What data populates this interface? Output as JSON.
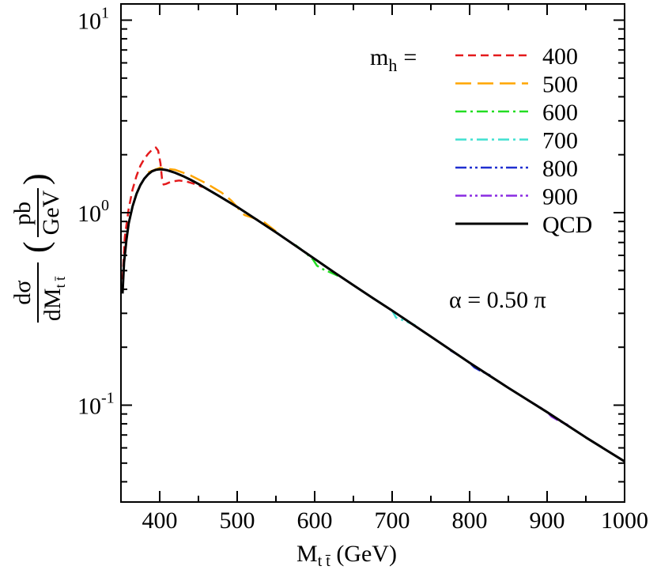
{
  "chart_data": {
    "type": "line",
    "xlim": [
      350,
      1000
    ],
    "ylim": [
      0.035,
      10
    ],
    "yscale": "log",
    "grid": false,
    "legend_placement": "top-right",
    "x_ticks": [
      400,
      500,
      600,
      700,
      800,
      900,
      1000
    ],
    "x_tick_labels": [
      "400",
      "500",
      "600",
      "700",
      "800",
      "900",
      "1000"
    ],
    "y_ticks": [
      {
        "value": 10,
        "base": "10",
        "exp": "1"
      },
      {
        "value": 1,
        "base": "10",
        "exp": "0"
      },
      {
        "value": 0.1,
        "base": "10",
        "exp": "-1"
      }
    ],
    "xlabel": {
      "main": "M",
      "sub": "t t̄",
      "rest": " (GeV)"
    },
    "ylabel": {
      "frac_num": "dσ",
      "frac_den_main": "dM",
      "frac_den_sub": "t t̄",
      "paren_open": "(",
      "paren_close": ")",
      "unit_num": "pb",
      "unit_den": "GeV"
    },
    "legend": {
      "title_main": "m",
      "title_sub": "h",
      "title_eq": "=",
      "entries": [
        {
          "label": "400",
          "color": "#e41a1c",
          "dash": "dash"
        },
        {
          "label": "500",
          "color": "#ffa500",
          "dash": "longdash"
        },
        {
          "label": "600",
          "color": "#22dd22",
          "dash": "dashdot"
        },
        {
          "label": "700",
          "color": "#40e0d0",
          "dash": "dashdot"
        },
        {
          "label": "800",
          "color": "#1f2fd0",
          "dash": "dashdotdot"
        },
        {
          "label": "900",
          "color": "#8a2be2",
          "dash": "dashdotdot"
        },
        {
          "label": "QCD",
          "color": "#000000",
          "dash": "solid"
        }
      ]
    },
    "annotation": "α = 0.50 π",
    "series": [
      {
        "name": "QCD",
        "color": "#000000",
        "dash": "solid",
        "x": [
          352,
          354,
          357,
          360,
          365,
          370,
          375,
          380,
          385,
          390,
          395,
          400,
          405,
          410,
          420,
          430,
          440,
          450,
          475,
          500,
          525,
          550,
          575,
          600,
          625,
          650,
          675,
          700,
          750,
          800,
          850,
          900,
          950,
          1000
        ],
        "y": [
          0.38,
          0.55,
          0.72,
          0.88,
          1.08,
          1.25,
          1.39,
          1.5,
          1.58,
          1.64,
          1.67,
          1.68,
          1.675,
          1.66,
          1.61,
          1.55,
          1.48,
          1.41,
          1.23,
          1.07,
          0.92,
          0.79,
          0.675,
          0.575,
          0.49,
          0.42,
          0.36,
          0.31,
          0.227,
          0.166,
          0.123,
          0.092,
          0.068,
          0.051
        ]
      },
      {
        "name": "400",
        "color": "#e41a1c",
        "dash": "dash",
        "x": [
          352,
          355,
          360,
          365,
          370,
          375,
          380,
          385,
          390,
          395,
          398,
          401,
          403,
          405,
          408,
          415,
          425,
          435,
          445,
          455
        ],
        "y": [
          0.45,
          0.75,
          1.05,
          1.32,
          1.55,
          1.75,
          1.9,
          2.02,
          2.12,
          2.18,
          2.1,
          1.8,
          1.5,
          1.4,
          1.41,
          1.45,
          1.47,
          1.45,
          1.41,
          1.36
        ]
      },
      {
        "name": "500",
        "color": "#ffa500",
        "dash": "longdash",
        "x": [
          385,
          400,
          420,
          440,
          460,
          480,
          492,
          500,
          505,
          510,
          520,
          535,
          550
        ],
        "y": [
          1.62,
          1.71,
          1.67,
          1.56,
          1.42,
          1.27,
          1.16,
          1.07,
          1.0,
          0.97,
          0.94,
          0.89,
          0.8
        ]
      },
      {
        "name": "600",
        "color": "#22dd22",
        "dash": "dashdot",
        "x": [
          575,
          590,
          598,
          603,
          610,
          625,
          640
        ],
        "y": [
          0.68,
          0.61,
          0.57,
          0.53,
          0.51,
          0.48,
          0.45
        ]
      },
      {
        "name": "700",
        "color": "#40e0d0",
        "dash": "dashdot",
        "x": [
          675,
          690,
          700,
          705,
          715,
          730
        ],
        "y": [
          0.36,
          0.33,
          0.31,
          0.285,
          0.275,
          0.26
        ]
      },
      {
        "name": "800",
        "color": "#1f2fd0",
        "dash": "dashdotdot",
        "x": [
          775,
          790,
          800,
          806,
          815,
          830
        ],
        "y": [
          0.193,
          0.177,
          0.166,
          0.157,
          0.15,
          0.141
        ]
      },
      {
        "name": "900",
        "color": "#8a2be2",
        "dash": "dashdotdot",
        "x": [
          875,
          890,
          900,
          906,
          915,
          930
        ],
        "y": [
          0.106,
          0.098,
          0.092,
          0.087,
          0.083,
          0.078
        ]
      }
    ]
  }
}
